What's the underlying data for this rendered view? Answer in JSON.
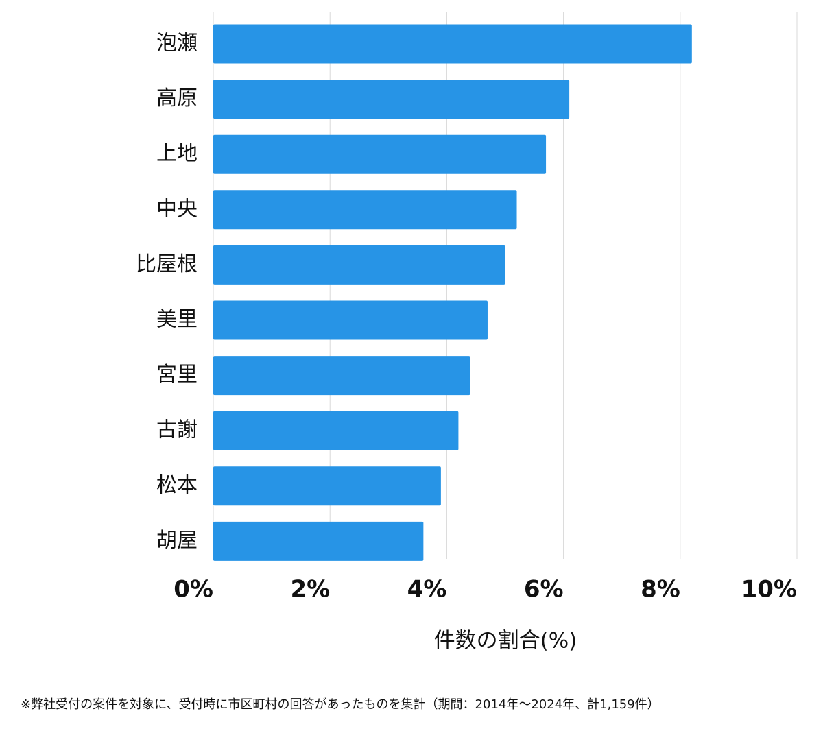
{
  "chart_data": {
    "type": "barh",
    "categories": [
      "泡瀬",
      "高原",
      "上地",
      "中央",
      "比屋根",
      "美里",
      "宮里",
      "古謝",
      "松本",
      "胡屋"
    ],
    "values": [
      8.2,
      6.1,
      5.7,
      5.2,
      5.0,
      4.7,
      4.4,
      4.2,
      3.9,
      3.6
    ],
    "color": "#2794e6",
    "xlim": [
      0,
      10
    ],
    "xticks": [
      {
        "value": 0,
        "label": "0%"
      },
      {
        "value": 2,
        "label": "2%"
      },
      {
        "value": 4,
        "label": "4%"
      },
      {
        "value": 6,
        "label": "6%"
      },
      {
        "value": 8,
        "label": "8%"
      },
      {
        "value": 10,
        "label": "10%"
      }
    ],
    "xlabel": "件数の割合(%)",
    "grid": true,
    "note": "※弊社受付の案件を対象に、受付時に市区町村の回答があったものを集計（期間：2014年～2024年、計1,159件）"
  }
}
